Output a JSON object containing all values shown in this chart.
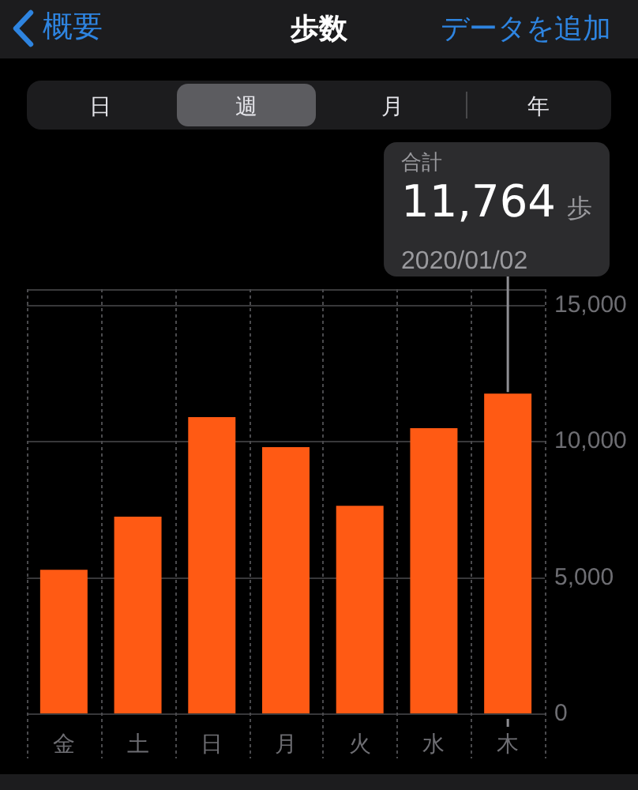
{
  "chart_data": {
    "type": "bar",
    "title": "歩数",
    "categories": [
      "金",
      "土",
      "日",
      "月",
      "火",
      "水",
      "木"
    ],
    "values": [
      5300,
      7250,
      10900,
      9800,
      7650,
      10500,
      11764
    ],
    "value_labels": [
      null,
      null,
      null,
      null,
      null,
      null,
      "11,764 歩"
    ],
    "color": "#ff5a14",
    "ylim": [
      0,
      15600
    ],
    "yticks": [
      0,
      {
        "value": 5000,
        "label": "5,000"
      },
      {
        "value": 10000,
        "label": "10,000"
      },
      {
        "value": 15000,
        "label": "15,000"
      }
    ],
    "grid": true,
    "annotations": [
      "概要",
      "データを追加",
      "日",
      "週",
      "月",
      "年",
      "合計",
      {
        "text": "2020/01/02",
        "x": "木",
        "y": 11764
      }
    ]
  }
}
